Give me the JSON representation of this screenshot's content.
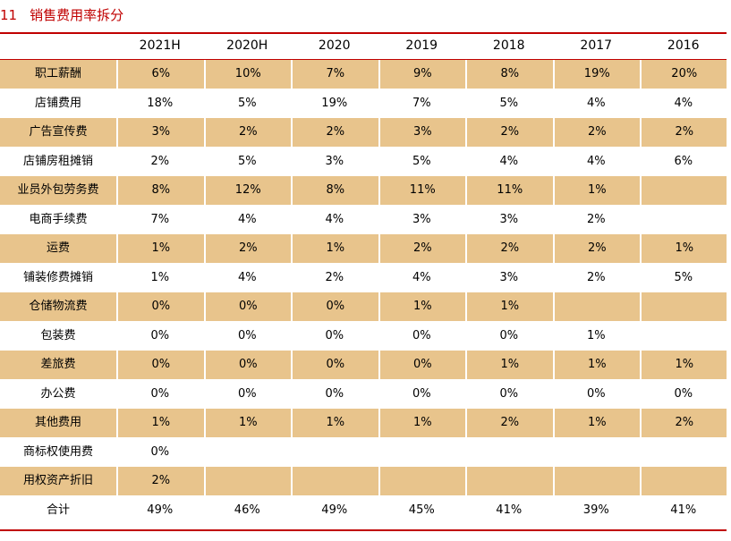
{
  "title": {
    "number": "11",
    "text": "销售费用率拆分"
  },
  "table": {
    "header": [
      "2021H",
      "2020H",
      "2020",
      "2019",
      "2018",
      "2017",
      "2016"
    ],
    "rows": [
      {
        "label": "职工薪酬",
        "cells": [
          "6%",
          "10%",
          "7%",
          "9%",
          "8%",
          "19%",
          "20%"
        ]
      },
      {
        "label": "店铺费用",
        "cells": [
          "18%",
          "5%",
          "19%",
          "7%",
          "5%",
          "4%",
          "4%"
        ]
      },
      {
        "label": "广告宣传费",
        "cells": [
          "3%",
          "2%",
          "2%",
          "3%",
          "2%",
          "2%",
          "2%"
        ]
      },
      {
        "label": "店铺房租摊销",
        "cells": [
          "2%",
          "5%",
          "3%",
          "5%",
          "4%",
          "4%",
          "6%"
        ]
      },
      {
        "label": "业员外包劳务费",
        "cells": [
          "8%",
          "12%",
          "8%",
          "11%",
          "11%",
          "1%",
          null
        ]
      },
      {
        "label": "电商手续费",
        "cells": [
          "7%",
          "4%",
          "4%",
          "3%",
          "3%",
          "2%",
          null
        ]
      },
      {
        "label": "运费",
        "cells": [
          "1%",
          "2%",
          "1%",
          "2%",
          "2%",
          "2%",
          "1%"
        ]
      },
      {
        "label": "铺装修费摊销",
        "cells": [
          "1%",
          "4%",
          "2%",
          "4%",
          "3%",
          "2%",
          "5%"
        ]
      },
      {
        "label": "仓储物流费",
        "cells": [
          "0%",
          "0%",
          "0%",
          "1%",
          "1%",
          null,
          null
        ]
      },
      {
        "label": "包装费",
        "cells": [
          "0%",
          "0%",
          "0%",
          "0%",
          "0%",
          "1%",
          null
        ]
      },
      {
        "label": "差旅费",
        "cells": [
          "0%",
          "0%",
          "0%",
          "0%",
          "1%",
          "1%",
          "1%"
        ]
      },
      {
        "label": "办公费",
        "cells": [
          "0%",
          "0%",
          "0%",
          "0%",
          "0%",
          "0%",
          "0%"
        ]
      },
      {
        "label": "其他费用",
        "cells": [
          "1%",
          "1%",
          "1%",
          "1%",
          "2%",
          "1%",
          "2%"
        ]
      },
      {
        "label": "商标权使用费",
        "cells": [
          "0%",
          null,
          null,
          null,
          null,
          null,
          null
        ]
      },
      {
        "label": "用权资产折旧",
        "cells": [
          "2%",
          null,
          null,
          null,
          null,
          null,
          null
        ]
      },
      {
        "label": "合计",
        "cells": [
          "49%",
          "46%",
          "49%",
          "45%",
          "41%",
          "39%",
          "41%"
        ]
      }
    ]
  }
}
